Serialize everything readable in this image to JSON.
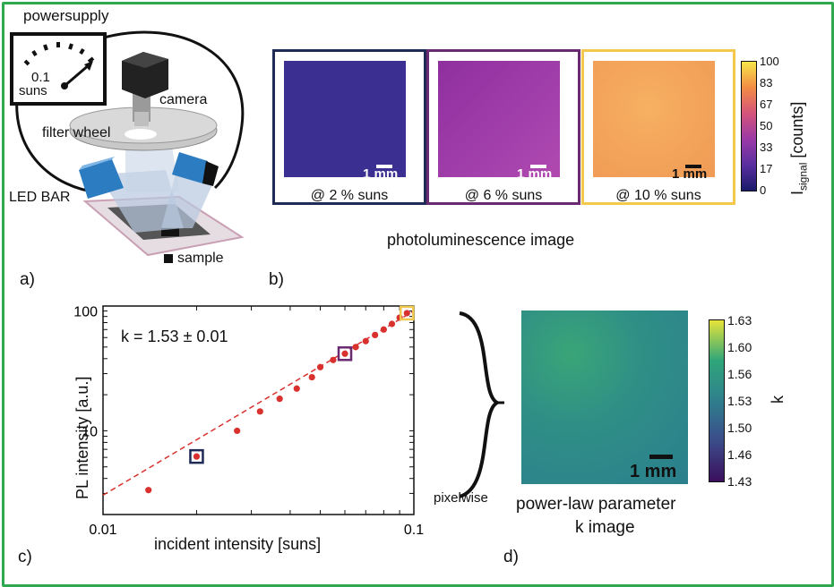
{
  "panel_a": {
    "power_supply_label": "powersupply",
    "dial_value": "0.1",
    "dial_unit": "suns",
    "camera_label": "camera",
    "filter_wheel_label": "filter wheel",
    "led_bar_label": "LED BAR",
    "sample_label": "sample",
    "letter": "a)"
  },
  "panel_b": {
    "letter": "b)",
    "caption": "photoluminescence image",
    "images": [
      {
        "caption": "@ 2 % suns",
        "scale": "1 mm",
        "color": "#3a2f8f",
        "frame": "#1f2a55"
      },
      {
        "caption": "@ 6 % suns",
        "scale": "1 mm",
        "color": "#9b3aa6",
        "frame": "#6a2a72"
      },
      {
        "caption": "@ 10 % suns",
        "scale": "1 mm",
        "color": "#f4a45a",
        "frame": "#f2c94c"
      }
    ],
    "colorbar": {
      "ticks": [
        "100",
        "83",
        "67",
        "50",
        "33",
        "17",
        "0"
      ],
      "label_main": "I",
      "label_sub": "signal",
      "label_unit": "[counts]"
    }
  },
  "chart_data": {
    "type": "scatter",
    "title": "",
    "annotation": "k = 1.53 ± 0.01",
    "xlabel": "incident intensity [suns]",
    "ylabel": "PL intensity [a.u.]",
    "xscale": "log",
    "yscale": "log",
    "xlim": [
      0.01,
      0.1
    ],
    "ylim": [
      2,
      110
    ],
    "xticks": [
      "0.01",
      "0.1"
    ],
    "yticks": [
      "10",
      "100"
    ],
    "series": [
      {
        "x": [
          0.014,
          0.02,
          0.027,
          0.032,
          0.037,
          0.042,
          0.047,
          0.05,
          0.055,
          0.06,
          0.065,
          0.07,
          0.075,
          0.08,
          0.085,
          0.09,
          0.095
        ],
        "y": [
          3.2,
          6.1,
          10,
          14.5,
          18.5,
          22.5,
          28,
          34,
          39,
          44,
          50,
          56,
          63,
          70,
          78,
          88,
          96
        ]
      }
    ],
    "fit_line": {
      "x": [
        0.01,
        0.1
      ],
      "y": [
        2.9,
        100
      ]
    },
    "highlights": [
      {
        "x": 0.02,
        "y": 6.1,
        "color": "#1f2a55"
      },
      {
        "x": 0.06,
        "y": 44,
        "color": "#6a2a72"
      },
      {
        "x": 0.095,
        "y": 96,
        "color": "#f2c94c"
      }
    ],
    "letter": "c)"
  },
  "panel_d": {
    "letter": "d)",
    "pixelwise": "pixelwise",
    "caption_line1": "power-law parameter",
    "caption_line2": "k image",
    "scale": "1 mm",
    "colorbar_ticks": [
      "1.63",
      "1.60",
      "1.56",
      "1.53",
      "1.50",
      "1.46",
      "1.43"
    ],
    "colorbar_label": "k"
  },
  "colors": {
    "frame": "#2fa84f",
    "data": "#d8312e"
  }
}
